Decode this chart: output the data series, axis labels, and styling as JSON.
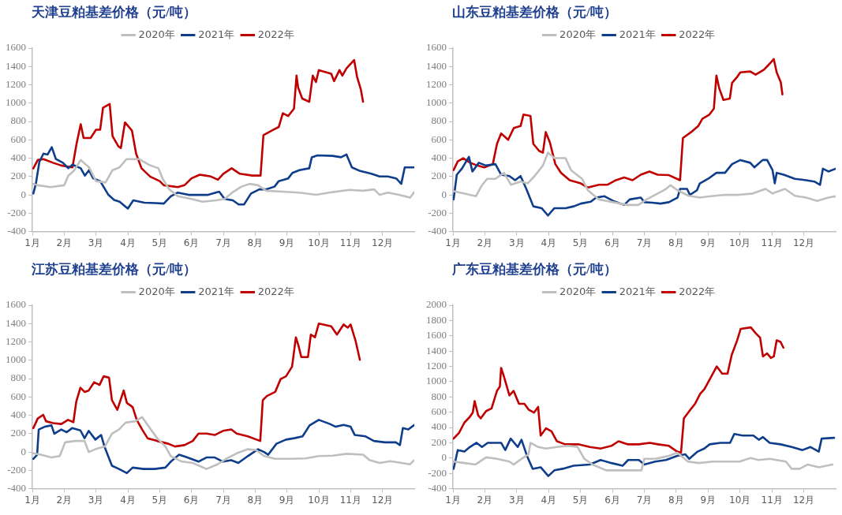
{
  "chart_data": [
    {
      "type": "line",
      "title": "天津豆粕基差价格（元/吨）",
      "legend": "top",
      "marker": "none",
      "line_style": "solid",
      "grid": false,
      "xlim": [
        1,
        13
      ],
      "xticks": [
        {
          "value": 1,
          "label": "1月"
        },
        {
          "value": 2,
          "label": "2月"
        },
        {
          "value": 3,
          "label": "3月"
        },
        {
          "value": 4,
          "label": "4月"
        },
        {
          "value": 5,
          "label": "5月"
        },
        {
          "value": 6,
          "label": "6月"
        },
        {
          "value": 7,
          "label": "7月"
        },
        {
          "value": 8,
          "label": "8月"
        },
        {
          "value": 9,
          "label": "9月"
        },
        {
          "value": 10,
          "label": "10月"
        },
        {
          "value": 11,
          "label": "11月"
        },
        {
          "value": 12,
          "label": "12月"
        }
      ],
      "ylim": [
        -400,
        1600
      ],
      "yticks": [
        -400,
        -200,
        0,
        200,
        400,
        600,
        800,
        1000,
        1200,
        1400,
        1600
      ],
      "series": [
        {
          "name": "2020年",
          "color": "#bfbfbf",
          "x": [
            1.03,
            1.17,
            1.57,
            2.0,
            2.13,
            2.3,
            2.52,
            2.78,
            3.0,
            3.3,
            3.52,
            3.74,
            3.96,
            4.35,
            4.65,
            4.96,
            5.09,
            5.3,
            5.57,
            6.0,
            6.35,
            6.78,
            7.04,
            7.3,
            7.57,
            7.83,
            8.09,
            8.35,
            8.87,
            9.39,
            9.91,
            10.43,
            10.96,
            11.39,
            11.74,
            11.91,
            12.17,
            12.52,
            12.87,
            13.0
          ],
          "values": [
            120,
            105,
            85,
            105,
            210,
            260,
            380,
            300,
            150,
            135,
            270,
            300,
            390,
            390,
            330,
            290,
            180,
            60,
            -15,
            -45,
            -75,
            -60,
            -45,
            30,
            90,
            120,
            105,
            45,
            35,
            25,
            0,
            30,
            55,
            45,
            60,
            0,
            25,
            0,
            -30,
            30
          ]
        },
        {
          "name": "2021年",
          "color": "#0e3d8c",
          "x": [
            1.03,
            1.11,
            1.22,
            1.35,
            1.48,
            1.61,
            1.74,
            1.96,
            2.13,
            2.26,
            2.52,
            2.65,
            2.78,
            2.91,
            3.13,
            3.39,
            3.57,
            3.74,
            4.0,
            4.17,
            4.52,
            4.87,
            5.13,
            5.35,
            5.57,
            5.91,
            6.26,
            6.52,
            6.87,
            7.04,
            7.3,
            7.48,
            7.65,
            7.87,
            8.13,
            8.35,
            8.61,
            8.74,
            9.04,
            9.17,
            9.39,
            9.7,
            9.78,
            9.96,
            10.43,
            10.7,
            10.87,
            11.04,
            11.3,
            11.65,
            11.91,
            12.17,
            12.43,
            12.59,
            12.7,
            13.0
          ],
          "values": [
            15,
            120,
            360,
            450,
            440,
            520,
            390,
            350,
            290,
            330,
            290,
            210,
            270,
            180,
            150,
            0,
            -55,
            -75,
            -150,
            -60,
            -85,
            -90,
            -95,
            -15,
            25,
            0,
            0,
            0,
            35,
            -45,
            -60,
            -105,
            -105,
            15,
            60,
            60,
            90,
            150,
            180,
            240,
            270,
            290,
            410,
            430,
            425,
            410,
            440,
            300,
            260,
            230,
            200,
            200,
            180,
            120,
            300,
            300
          ]
        },
        {
          "name": "2022年",
          "color": "#c00000",
          "x": [
            1.03,
            1.17,
            1.35,
            1.65,
            1.91,
            2.26,
            2.39,
            2.52,
            2.61,
            2.83,
            3.0,
            3.13,
            3.22,
            3.43,
            3.52,
            3.7,
            3.78,
            3.91,
            4.13,
            4.26,
            4.43,
            4.7,
            5.0,
            5.13,
            5.57,
            5.78,
            6.0,
            6.26,
            6.61,
            6.83,
            7.0,
            7.26,
            7.52,
            7.91,
            8.17,
            8.26,
            8.52,
            8.74,
            8.87,
            9.04,
            9.22,
            9.3,
            9.35,
            9.48,
            9.7,
            9.81,
            9.91,
            10.0,
            10.39,
            10.48,
            10.65,
            10.74,
            10.87,
            11.11,
            11.2,
            11.32,
            11.39
          ],
          "values": [
            288,
            380,
            390,
            350,
            320,
            300,
            560,
            770,
            620,
            620,
            710,
            710,
            950,
            990,
            640,
            530,
            510,
            790,
            700,
            450,
            290,
            200,
            150,
            105,
            85,
            105,
            180,
            220,
            200,
            165,
            230,
            290,
            230,
            210,
            210,
            650,
            700,
            740,
            890,
            860,
            940,
            1300,
            1170,
            1050,
            1015,
            1300,
            1230,
            1360,
            1320,
            1240,
            1360,
            1300,
            1380,
            1470,
            1290,
            1150,
            1015
          ]
        }
      ]
    },
    {
      "type": "line",
      "title": "山东豆粕基差价格（元/吨）",
      "legend": "top",
      "marker": "none",
      "line_style": "solid",
      "grid": false,
      "xlim": [
        1,
        13
      ],
      "xticks": [
        {
          "value": 1,
          "label": "1月"
        },
        {
          "value": 2,
          "label": "2月"
        },
        {
          "value": 3,
          "label": "3月"
        },
        {
          "value": 4,
          "label": "4月"
        },
        {
          "value": 5,
          "label": "5月"
        },
        {
          "value": 6,
          "label": "6月"
        },
        {
          "value": 7,
          "label": "7月"
        },
        {
          "value": 8,
          "label": "8月"
        },
        {
          "value": 9,
          "label": "9月"
        },
        {
          "value": 10,
          "label": "10月"
        },
        {
          "value": 11,
          "label": "11月"
        },
        {
          "value": 12,
          "label": "12月"
        }
      ],
      "ylim": [
        -400,
        1600
      ],
      "yticks": [
        -400,
        -200,
        0,
        200,
        400,
        600,
        800,
        1000,
        1200,
        1400,
        1600
      ],
      "series": [
        {
          "name": "2020年",
          "color": "#bfbfbf",
          "x": [
            1.02,
            1.28,
            1.72,
            1.89,
            2.07,
            2.33,
            2.6,
            2.82,
            3.12,
            3.34,
            3.56,
            3.82,
            3.98,
            4.18,
            4.53,
            4.7,
            5.05,
            5.23,
            5.58,
            6.02,
            6.46,
            6.81,
            7.07,
            7.42,
            7.68,
            7.82,
            8.04,
            8.39,
            8.74,
            9.09,
            9.53,
            9.96,
            10.4,
            10.8,
            11.02,
            11.41,
            11.72,
            12.07,
            12.42,
            12.77,
            13.0
          ],
          "values": [
            40,
            20,
            -15,
            95,
            175,
            175,
            240,
            110,
            145,
            125,
            205,
            320,
            460,
            400,
            400,
            270,
            175,
            50,
            -50,
            -80,
            -110,
            -110,
            -50,
            15,
            65,
            105,
            50,
            -10,
            -30,
            -15,
            0,
            0,
            15,
            65,
            15,
            65,
            -10,
            -30,
            -65,
            -30,
            -15
          ]
        },
        {
          "name": "2021年",
          "color": "#0e3d8c",
          "x": [
            1.02,
            1.12,
            1.28,
            1.5,
            1.61,
            1.81,
            2.03,
            2.33,
            2.51,
            2.77,
            2.95,
            3.12,
            3.3,
            3.52,
            3.78,
            3.98,
            4.18,
            4.53,
            4.79,
            5.01,
            5.32,
            5.49,
            5.75,
            6.02,
            6.37,
            6.54,
            6.89,
            7.0,
            7.25,
            7.51,
            7.77,
            8.04,
            8.12,
            8.34,
            8.43,
            8.65,
            8.74,
            9.0,
            9.26,
            9.53,
            9.75,
            10.01,
            10.32,
            10.45,
            10.71,
            10.85,
            11.02,
            11.09,
            11.15,
            11.37,
            11.72,
            12.07,
            12.33,
            12.51,
            12.6,
            12.77,
            13.0
          ],
          "values": [
            -50,
            220,
            285,
            415,
            255,
            350,
            320,
            335,
            220,
            205,
            160,
            205,
            65,
            -125,
            -145,
            -225,
            -145,
            -145,
            -125,
            -95,
            -75,
            -30,
            -15,
            -65,
            -110,
            -50,
            -30,
            -80,
            -85,
            -95,
            -80,
            -30,
            65,
            65,
            0,
            50,
            125,
            175,
            240,
            240,
            335,
            380,
            350,
            300,
            380,
            380,
            270,
            125,
            240,
            220,
            175,
            160,
            145,
            110,
            285,
            255,
            285
          ]
        },
        {
          "name": "2022年",
          "color": "#c00000",
          "x": [
            1.02,
            1.15,
            1.32,
            1.54,
            1.76,
            1.98,
            2.25,
            2.38,
            2.51,
            2.73,
            2.91,
            3.12,
            3.21,
            3.43,
            3.52,
            3.7,
            3.82,
            3.91,
            4.04,
            4.21,
            4.39,
            4.66,
            5.01,
            5.23,
            5.58,
            5.84,
            6.11,
            6.37,
            6.63,
            6.89,
            7.16,
            7.42,
            7.77,
            8.12,
            8.21,
            8.47,
            8.69,
            8.82,
            9.04,
            9.18,
            9.26,
            9.35,
            9.48,
            9.68,
            9.75,
            9.92,
            10.01,
            10.32,
            10.49,
            10.75,
            10.93,
            11.06,
            11.15,
            11.28,
            11.33
          ],
          "values": [
            270,
            365,
            400,
            350,
            320,
            300,
            335,
            555,
            670,
            600,
            730,
            750,
            875,
            860,
            555,
            480,
            460,
            685,
            570,
            335,
            240,
            160,
            125,
            80,
            110,
            110,
            160,
            190,
            160,
            220,
            255,
            220,
            215,
            160,
            620,
            685,
            750,
            830,
            875,
            940,
            1300,
            1160,
            1035,
            1050,
            1220,
            1290,
            1335,
            1345,
            1310,
            1365,
            1430,
            1480,
            1335,
            1225,
            1095
          ]
        }
      ]
    },
    {
      "type": "line",
      "title": "江苏豆粕基差价格（元/吨）",
      "legend": "top",
      "marker": "none",
      "line_style": "solid",
      "grid": false,
      "xlim": [
        1,
        13
      ],
      "xticks": [
        {
          "value": 1,
          "label": "1月"
        },
        {
          "value": 2,
          "label": "2月"
        },
        {
          "value": 3,
          "label": "3月"
        },
        {
          "value": 4,
          "label": "4月"
        },
        {
          "value": 5,
          "label": "5月"
        },
        {
          "value": 6,
          "label": "6月"
        },
        {
          "value": 7,
          "label": "7月"
        },
        {
          "value": 8,
          "label": "8月"
        },
        {
          "value": 9,
          "label": "9月"
        },
        {
          "value": 10,
          "label": "10月"
        },
        {
          "value": 11,
          "label": "11月"
        },
        {
          "value": 12,
          "label": "12月"
        }
      ],
      "ylim": [
        -400,
        1600
      ],
      "yticks": [
        -400,
        -200,
        0,
        200,
        400,
        600,
        800,
        1000,
        1200,
        1400,
        1600
      ],
      "series": [
        {
          "name": "2020年",
          "color": "#bfbfbf",
          "x": [
            1.03,
            1.26,
            1.6,
            1.86,
            2.03,
            2.34,
            2.64,
            2.77,
            2.98,
            3.28,
            3.5,
            3.72,
            3.93,
            4.23,
            4.45,
            4.66,
            4.92,
            5.18,
            5.35,
            5.7,
            6.04,
            6.47,
            6.82,
            7.08,
            7.42,
            7.77,
            8.03,
            8.28,
            8.63,
            9.15,
            9.58,
            10.0,
            10.44,
            10.87,
            11.39,
            11.6,
            11.91,
            12.25,
            12.6,
            12.86,
            13.0
          ],
          "values": [
            -15,
            -30,
            -60,
            -45,
            105,
            120,
            120,
            0,
            30,
            60,
            200,
            245,
            320,
            335,
            380,
            275,
            150,
            60,
            -45,
            -105,
            -120,
            -185,
            -135,
            -75,
            -15,
            30,
            20,
            -45,
            -75,
            -75,
            -70,
            -45,
            -40,
            -20,
            -30,
            -90,
            -120,
            -100,
            -120,
            -135,
            -90
          ]
        },
        {
          "name": "2021年",
          "color": "#0e3d8c",
          "x": [
            1.03,
            1.15,
            1.2,
            1.39,
            1.6,
            1.69,
            1.91,
            2.08,
            2.25,
            2.51,
            2.64,
            2.77,
            2.98,
            3.16,
            3.28,
            3.5,
            3.72,
            3.97,
            4.15,
            4.49,
            4.84,
            5.18,
            5.35,
            5.61,
            5.87,
            6.22,
            6.47,
            6.73,
            6.99,
            7.25,
            7.47,
            7.77,
            8.09,
            8.28,
            8.41,
            8.67,
            8.97,
            9.23,
            9.49,
            9.71,
            10.0,
            10.35,
            10.53,
            10.78,
            11.0,
            11.13,
            11.47,
            11.73,
            12.08,
            12.42,
            12.55,
            12.64,
            12.81,
            13.0
          ],
          "values": [
            -75,
            -30,
            245,
            275,
            290,
            200,
            245,
            215,
            260,
            235,
            150,
            230,
            135,
            185,
            45,
            -150,
            -185,
            -230,
            -170,
            -185,
            -185,
            -170,
            -105,
            -30,
            -60,
            -105,
            -60,
            -60,
            -105,
            -90,
            -120,
            -45,
            30,
            0,
            -30,
            90,
            135,
            150,
            170,
            290,
            350,
            305,
            275,
            295,
            275,
            185,
            170,
            120,
            105,
            105,
            75,
            260,
            245,
            295
          ]
        },
        {
          "name": "2022年",
          "color": "#c00000",
          "x": [
            1.03,
            1.17,
            1.34,
            1.43,
            1.65,
            1.91,
            2.12,
            2.29,
            2.38,
            2.51,
            2.64,
            2.77,
            2.94,
            3.11,
            3.24,
            3.41,
            3.5,
            3.67,
            3.87,
            3.97,
            4.15,
            4.28,
            4.45,
            4.62,
            4.92,
            5.27,
            5.48,
            5.78,
            6.04,
            6.22,
            6.47,
            6.73,
            6.99,
            7.25,
            7.42,
            7.77,
            8.16,
            8.24,
            8.37,
            8.63,
            8.8,
            8.97,
            9.16,
            9.28,
            9.36,
            9.45,
            9.66,
            9.75,
            9.88,
            10.0,
            10.39,
            10.57,
            10.78,
            10.91,
            11.0,
            11.16,
            11.29
          ],
          "values": [
            260,
            365,
            405,
            335,
            315,
            305,
            350,
            325,
            550,
            700,
            655,
            670,
            760,
            730,
            825,
            810,
            565,
            460,
            670,
            535,
            490,
            350,
            245,
            150,
            120,
            90,
            60,
            75,
            120,
            200,
            200,
            185,
            230,
            245,
            200,
            170,
            120,
            565,
            610,
            655,
            795,
            825,
            930,
            1250,
            1160,
            1035,
            1035,
            1280,
            1250,
            1400,
            1370,
            1280,
            1390,
            1355,
            1390,
            1205,
            1005
          ]
        }
      ]
    },
    {
      "type": "line",
      "title": "广东豆粕基差价格（元/吨）",
      "legend": "top",
      "marker": "none",
      "line_style": "solid",
      "grid": false,
      "xlim": [
        1,
        13
      ],
      "xticks": [
        {
          "value": 1,
          "label": "1月"
        },
        {
          "value": 2,
          "label": "2月"
        },
        {
          "value": 3,
          "label": "3月"
        },
        {
          "value": 4,
          "label": "4月"
        },
        {
          "value": 5,
          "label": "5月"
        },
        {
          "value": 6,
          "label": "6月"
        },
        {
          "value": 7,
          "label": "7月"
        },
        {
          "value": 8,
          "label": "8月"
        },
        {
          "value": 9,
          "label": "9月"
        },
        {
          "value": 10,
          "label": "10月"
        },
        {
          "value": 11,
          "label": "11月"
        },
        {
          "value": 12,
          "label": "12月"
        }
      ],
      "ylim": [
        -400,
        2000
      ],
      "yticks": [
        -400,
        -200,
        0,
        200,
        400,
        600,
        800,
        1000,
        1200,
        1400,
        1600,
        1800,
        2000
      ],
      "series": [
        {
          "name": "2020年",
          "color": "#bfbfbf",
          "x": [
            1.02,
            1.36,
            1.7,
            2.04,
            2.38,
            2.77,
            2.9,
            3.15,
            3.37,
            3.43,
            3.67,
            3.92,
            4.26,
            4.61,
            4.91,
            5.12,
            5.38,
            5.8,
            6.23,
            6.66,
            6.91,
            7.0,
            7.34,
            7.77,
            8.03,
            8.37,
            8.71,
            9.14,
            9.56,
            9.99,
            10.33,
            10.59,
            10.93,
            11.44,
            11.62,
            11.87,
            12.12,
            12.47,
            12.9
          ],
          "values": [
            -45,
            -65,
            -85,
            10,
            -10,
            -45,
            -85,
            -10,
            50,
            200,
            145,
            125,
            145,
            160,
            145,
            -10,
            -85,
            -160,
            -160,
            -160,
            -160,
            -10,
            -10,
            30,
            70,
            -45,
            -65,
            -45,
            -45,
            -45,
            0,
            -25,
            -10,
            -45,
            -140,
            -140,
            -85,
            -120,
            -85
          ]
        },
        {
          "name": "2021年",
          "color": "#0e3d8c",
          "x": [
            1.02,
            1.15,
            1.36,
            1.53,
            1.74,
            1.91,
            2.09,
            2.3,
            2.51,
            2.64,
            2.81,
            3.03,
            3.15,
            3.32,
            3.5,
            3.75,
            3.99,
            4.18,
            4.44,
            4.78,
            5.29,
            5.63,
            5.97,
            6.32,
            6.49,
            6.83,
            7.0,
            7.34,
            7.68,
            8.03,
            8.28,
            8.41,
            8.67,
            8.88,
            9.05,
            9.39,
            9.69,
            9.82,
            10.08,
            10.42,
            10.59,
            10.72,
            10.93,
            11.27,
            11.62,
            11.96,
            12.21,
            12.47,
            12.56,
            12.95
          ],
          "values": [
            -140,
            105,
            85,
            145,
            200,
            145,
            200,
            200,
            200,
            105,
            255,
            145,
            240,
            30,
            -140,
            -120,
            -235,
            -160,
            -140,
            -100,
            -85,
            -25,
            -65,
            -100,
            -25,
            -25,
            -85,
            -45,
            -25,
            30,
            50,
            -10,
            85,
            125,
            180,
            200,
            200,
            315,
            295,
            295,
            240,
            275,
            200,
            180,
            145,
            105,
            145,
            85,
            255,
            265
          ]
        },
        {
          "name": "2022年",
          "color": "#c00000",
          "x": [
            1.02,
            1.19,
            1.36,
            1.53,
            1.62,
            1.68,
            1.79,
            1.87,
            2.04,
            2.21,
            2.38,
            2.47,
            2.51,
            2.6,
            2.77,
            2.9,
            3.07,
            3.24,
            3.37,
            3.54,
            3.67,
            3.75,
            3.92,
            4.09,
            4.26,
            4.52,
            4.95,
            5.29,
            5.63,
            5.97,
            6.19,
            6.49,
            6.83,
            7.17,
            7.43,
            7.77,
            8.03,
            8.15,
            8.24,
            8.41,
            8.59,
            8.75,
            8.88,
            9.05,
            9.27,
            9.44,
            9.61,
            9.74,
            9.91,
            10.02,
            10.34,
            10.5,
            10.63,
            10.72,
            10.85,
            10.97,
            11.06,
            11.15,
            11.27,
            11.36
          ],
          "values": [
            255,
            330,
            465,
            540,
            595,
            745,
            560,
            520,
            615,
            650,
            880,
            935,
            1180,
            1065,
            820,
            880,
            710,
            710,
            635,
            595,
            670,
            295,
            390,
            350,
            220,
            180,
            180,
            145,
            125,
            160,
            220,
            180,
            180,
            200,
            180,
            160,
            85,
            70,
            520,
            615,
            710,
            840,
            900,
            1030,
            1200,
            1105,
            1105,
            1350,
            1540,
            1690,
            1710,
            1630,
            1575,
            1330,
            1370,
            1310,
            1330,
            1540,
            1520,
            1445
          ]
        }
      ]
    }
  ]
}
